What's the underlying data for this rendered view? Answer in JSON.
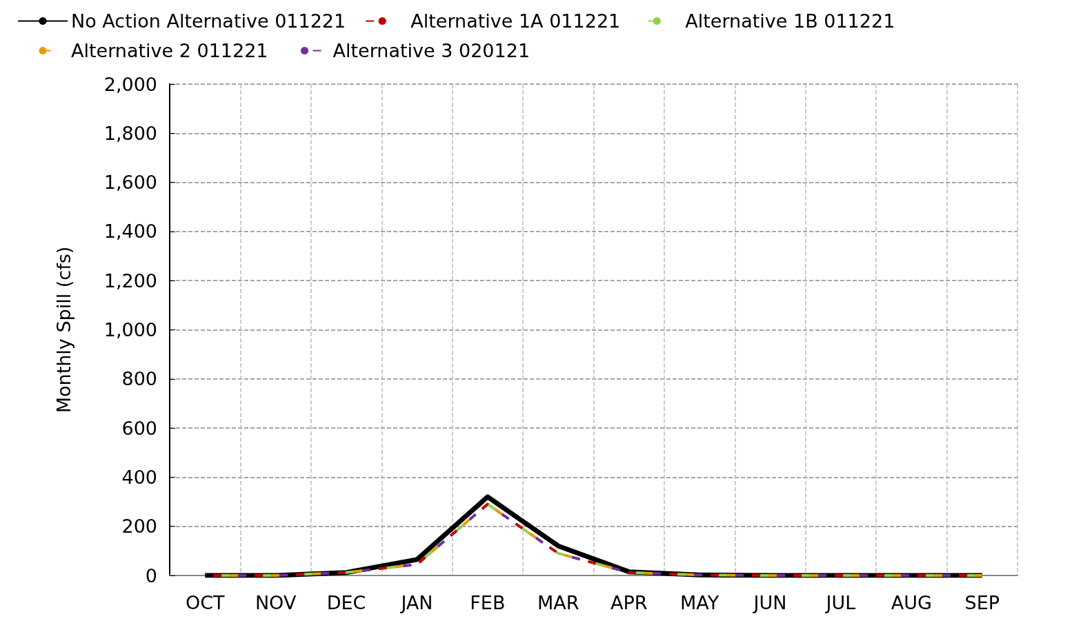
{
  "chart_data": {
    "type": "line",
    "ylabel": "Monthly Spill (cfs)",
    "categories": [
      "OCT",
      "NOV",
      "DEC",
      "JAN",
      "FEB",
      "MAR",
      "APR",
      "MAY",
      "JUN",
      "JUL",
      "AUG",
      "SEP"
    ],
    "series": [
      {
        "name": "No Action Alternative 011221",
        "color": "#000000",
        "line_style": "solid",
        "values": [
          0,
          0,
          12,
          65,
          320,
          120,
          15,
          2,
          0,
          0,
          0,
          0
        ]
      },
      {
        "name": "Alternative 1A 011221",
        "color": "#c00000",
        "line_style": "dashed",
        "values": [
          0,
          0,
          12,
          45,
          290,
          90,
          12,
          2,
          0,
          0,
          0,
          0
        ]
      },
      {
        "name": "Alternative 1B 011221",
        "color": "#92d050",
        "line_style": "dashed",
        "values": [
          0,
          0,
          12,
          45,
          290,
          90,
          12,
          2,
          0,
          0,
          0,
          0
        ]
      },
      {
        "name": "Alternative 2 011221",
        "color": "#e69c00",
        "line_style": "dashed",
        "values": [
          0,
          0,
          12,
          45,
          290,
          90,
          12,
          2,
          0,
          0,
          0,
          0
        ]
      },
      {
        "name": "Alternative 3 020121",
        "color": "#7030a0",
        "line_style": "dashed",
        "values": [
          0,
          0,
          12,
          45,
          290,
          90,
          12,
          2,
          0,
          0,
          0,
          0
        ]
      }
    ],
    "ylim": [
      0,
      2000
    ],
    "yticks": [
      0,
      200,
      400,
      600,
      800,
      {
        "value": 1000,
        "label": "1,000"
      },
      {
        "value": 1200,
        "label": "1,200"
      },
      {
        "value": 1400,
        "label": "1,400"
      },
      {
        "value": 1600,
        "label": "1,600"
      },
      {
        "value": 1800,
        "label": "1,800"
      },
      {
        "value": 2000,
        "label": "2,000"
      }
    ],
    "grid": true,
    "legend": "top",
    "marker": "none"
  }
}
